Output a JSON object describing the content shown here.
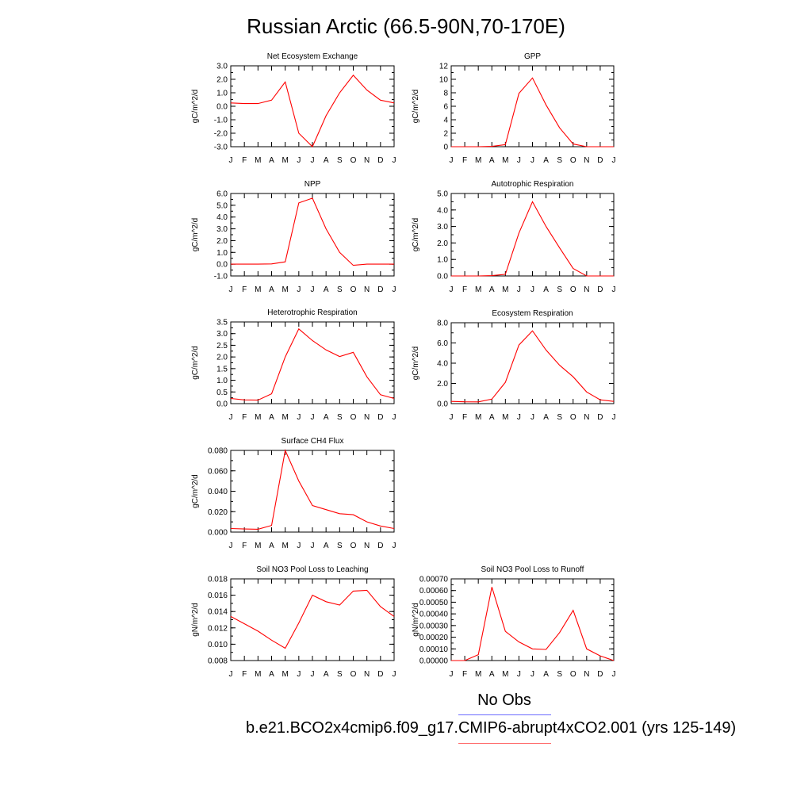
{
  "figure": {
    "title": "Russian Arctic (66.5-90N,70-170E)",
    "legend": {
      "obs_label": "No Obs",
      "obs_color": "#6b6bff",
      "model_label": "b.e21.BCO2x4cmip6.f09_g17.CMIP6-abrupt4xCO2.001 (yrs 125-149)",
      "model_color": "#ff6b6b"
    },
    "line_color": "#ff0000",
    "months": [
      "J",
      "F",
      "M",
      "A",
      "M",
      "J",
      "J",
      "A",
      "S",
      "O",
      "N",
      "D",
      "J"
    ]
  },
  "chart_data": [
    {
      "type": "line",
      "title": "Net Ecosystem Exchange",
      "ylabel": "gC/m^2/d",
      "ylim": [
        -3.0,
        3.0
      ],
      "yticks": [
        "3.0",
        "2.0",
        "1.0",
        "0.0",
        "-1.0",
        "-2.0",
        "-3.0"
      ],
      "ytick_values": [
        3,
        2,
        1,
        0,
        -1,
        -2,
        -3
      ],
      "x": [
        "J",
        "F",
        "M",
        "A",
        "M",
        "J",
        "J",
        "A",
        "S",
        "O",
        "N",
        "D",
        "J"
      ],
      "values": [
        0.25,
        0.2,
        0.2,
        0.45,
        1.8,
        -2.0,
        -3.0,
        -0.7,
        1.0,
        2.3,
        1.2,
        0.45,
        0.25
      ]
    },
    {
      "type": "line",
      "title": "GPP",
      "ylabel": "gC/m^2/d",
      "ylim": [
        0,
        12
      ],
      "yticks": [
        "12",
        "10",
        "8",
        "6",
        "4",
        "2",
        "0"
      ],
      "ytick_values": [
        12,
        10,
        8,
        6,
        4,
        2,
        0
      ],
      "x": [
        "J",
        "F",
        "M",
        "A",
        "M",
        "J",
        "J",
        "A",
        "S",
        "O",
        "N",
        "D",
        "J"
      ],
      "values": [
        0.0,
        0.0,
        0.0,
        0.05,
        0.3,
        7.9,
        10.2,
        6.2,
        2.8,
        0.4,
        0.0,
        0.0,
        0.0
      ]
    },
    {
      "type": "line",
      "title": "NPP",
      "ylabel": "gC/m^2/d",
      "ylim": [
        -1.0,
        6.0
      ],
      "yticks": [
        "6.0",
        "5.0",
        "4.0",
        "3.0",
        "2.0",
        "1.0",
        "0.0",
        "-1.0"
      ],
      "ytick_values": [
        6,
        5,
        4,
        3,
        2,
        1,
        0,
        -1
      ],
      "x": [
        "J",
        "F",
        "M",
        "A",
        "M",
        "J",
        "J",
        "A",
        "S",
        "O",
        "N",
        "D",
        "J"
      ],
      "values": [
        0.0,
        0.0,
        0.0,
        0.02,
        0.2,
        5.2,
        5.6,
        3.0,
        1.0,
        -0.1,
        0.0,
        0.0,
        0.0
      ]
    },
    {
      "type": "line",
      "title": "Autotrophic Respiration",
      "ylabel": "gC/m^2/d",
      "ylim": [
        0,
        5.0
      ],
      "yticks": [
        "5.0",
        "4.0",
        "3.0",
        "2.0",
        "1.0",
        "0.0"
      ],
      "ytick_values": [
        5,
        4,
        3,
        2,
        1,
        0
      ],
      "x": [
        "J",
        "F",
        "M",
        "A",
        "M",
        "J",
        "J",
        "A",
        "S",
        "O",
        "N",
        "D",
        "J"
      ],
      "values": [
        0.0,
        0.0,
        0.0,
        0.02,
        0.1,
        2.6,
        4.5,
        3.0,
        1.7,
        0.45,
        0.0,
        0.0,
        0.0
      ]
    },
    {
      "type": "line",
      "title": "Heterotrophic Respiration",
      "ylabel": "gC/m^2/d",
      "ylim": [
        0,
        3.5
      ],
      "yticks": [
        "3.5",
        "3.0",
        "2.5",
        "2.0",
        "1.5",
        "1.0",
        "0.5",
        "0.0"
      ],
      "ytick_values": [
        3.5,
        3,
        2.5,
        2,
        1.5,
        1,
        0.5,
        0
      ],
      "x": [
        "J",
        "F",
        "M",
        "A",
        "M",
        "J",
        "J",
        "A",
        "S",
        "O",
        "N",
        "D",
        "J"
      ],
      "values": [
        0.22,
        0.16,
        0.15,
        0.42,
        2.0,
        3.2,
        2.7,
        2.3,
        2.02,
        2.2,
        1.15,
        0.38,
        0.22
      ]
    },
    {
      "type": "line",
      "title": "Ecosystem Respiration",
      "ylabel": "gC/m^2/d",
      "ylim": [
        0,
        8.0
      ],
      "yticks": [
        "8.0",
        "6.0",
        "4.0",
        "2.0",
        "0.0"
      ],
      "ytick_values": [
        8,
        6,
        4,
        2,
        0
      ],
      "x": [
        "J",
        "F",
        "M",
        "A",
        "M",
        "J",
        "J",
        "A",
        "S",
        "O",
        "N",
        "D",
        "J"
      ],
      "values": [
        0.22,
        0.18,
        0.17,
        0.45,
        2.1,
        5.8,
        7.2,
        5.3,
        3.8,
        2.65,
        1.15,
        0.38,
        0.22
      ]
    },
    {
      "type": "line",
      "title": "Surface CH4 Flux",
      "ylabel": "gC/m^2/d",
      "ylim": [
        0,
        0.08
      ],
      "yticks": [
        "0.080",
        "0.060",
        "0.040",
        "0.020",
        "0.000"
      ],
      "ytick_values": [
        0.08,
        0.06,
        0.04,
        0.02,
        0
      ],
      "x": [
        "J",
        "F",
        "M",
        "A",
        "M",
        "J",
        "J",
        "A",
        "S",
        "O",
        "N",
        "D",
        "J"
      ],
      "values": [
        0.0035,
        0.003,
        0.0028,
        0.0065,
        0.08,
        0.05,
        0.026,
        0.022,
        0.018,
        0.017,
        0.01,
        0.006,
        0.0035
      ]
    },
    {
      "type": "line",
      "title": "Soil NO3 Pool Loss to Leaching",
      "ylabel": "gN/m^2/d",
      "ylim": [
        0.008,
        0.018
      ],
      "yticks": [
        "0.018",
        "0.016",
        "0.014",
        "0.012",
        "0.010",
        "0.008"
      ],
      "ytick_values": [
        0.018,
        0.016,
        0.014,
        0.012,
        0.01,
        0.008
      ],
      "x": [
        "J",
        "F",
        "M",
        "A",
        "M",
        "J",
        "J",
        "A",
        "S",
        "O",
        "N",
        "D",
        "J"
      ],
      "values": [
        0.0134,
        0.0125,
        0.0116,
        0.0105,
        0.0095,
        0.0126,
        0.016,
        0.0152,
        0.0148,
        0.0165,
        0.0166,
        0.0146,
        0.0134
      ]
    },
    {
      "type": "line",
      "title": "Soil NO3 Pool Loss to Runoff",
      "ylabel": "gN/m^2/d",
      "ylim": [
        0,
        0.0007
      ],
      "yticks": [
        "0.00070",
        "0.00060",
        "0.00050",
        "0.00040",
        "0.00030",
        "0.00020",
        "0.00010",
        "0.00000"
      ],
      "ytick_values": [
        0.0007,
        0.0006,
        0.0005,
        0.0004,
        0.0003,
        0.0002,
        0.0001,
        0
      ],
      "x": [
        "J",
        "F",
        "M",
        "A",
        "M",
        "J",
        "J",
        "A",
        "S",
        "O",
        "N",
        "D",
        "J"
      ],
      "values": [
        0.0,
        0.0,
        5e-05,
        0.00063,
        0.00025,
        0.00016,
        0.0001,
        9.5e-05,
        0.00024,
        0.00043,
        0.0001,
        4e-05,
        0.0
      ]
    }
  ]
}
